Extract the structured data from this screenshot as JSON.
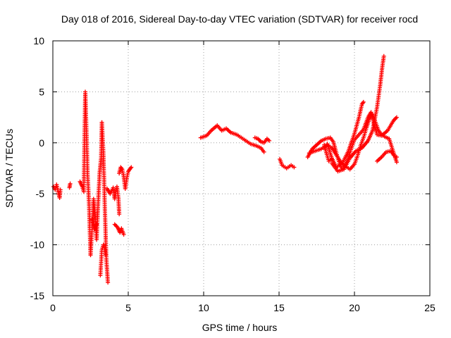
{
  "chart_data": {
    "type": "scatter",
    "title": "Day 018 of 2016, Sidereal Day-to-day VTEC variation (SDTVAR) for receiver rocd",
    "xlabel": "GPS time / hours",
    "ylabel": "SDTVAR / TECUs",
    "xlim": [
      0,
      25
    ],
    "ylim": [
      -15,
      10
    ],
    "xticks": [
      0,
      5,
      10,
      15,
      20,
      25
    ],
    "yticks": [
      -15,
      -10,
      -5,
      0,
      5,
      10
    ],
    "grid": true,
    "marker": "+",
    "color": "#ff0000",
    "series": [
      {
        "name": "SDTVAR",
        "segments": [
          [
            [
              0.05,
              -4.3
            ],
            [
              0.15,
              -4.6
            ],
            [
              0.25,
              -4.1
            ],
            [
              0.35,
              -4.8
            ],
            [
              0.45,
              -5.4
            ],
            [
              0.5,
              -4.6
            ]
          ],
          [
            [
              1.1,
              -4.4
            ],
            [
              1.15,
              -4.0
            ]
          ],
          [
            [
              1.8,
              -3.8
            ],
            [
              1.95,
              -4.3
            ],
            [
              2.05,
              -4.8
            ],
            [
              2.15,
              5.0
            ],
            [
              2.2,
              2.5
            ],
            [
              2.25,
              0.0
            ],
            [
              2.3,
              -3.0
            ],
            [
              2.4,
              -6.0
            ],
            [
              2.5,
              -11.0
            ]
          ],
          [
            [
              2.5,
              -11.0
            ],
            [
              2.6,
              -8.5
            ],
            [
              2.7,
              -5.5
            ],
            [
              2.8,
              -7.0
            ],
            [
              2.9,
              -9.5
            ],
            [
              3.0,
              -6.0
            ],
            [
              3.1,
              -3.0
            ],
            [
              3.2,
              -1.5
            ],
            [
              3.25,
              2.0
            ]
          ],
          [
            [
              3.25,
              2.0
            ],
            [
              3.35,
              -1.0
            ],
            [
              3.45,
              -6.5
            ],
            [
              3.55,
              -11.5
            ],
            [
              3.65,
              -13.7
            ]
          ],
          [
            [
              3.15,
              -13.0
            ],
            [
              3.25,
              -10.5
            ],
            [
              3.35,
              -10.0
            ],
            [
              3.45,
              -10.5
            ],
            [
              3.5,
              -11.0
            ]
          ],
          [
            [
              2.6,
              -7.5
            ],
            [
              2.75,
              -8.5
            ],
            [
              2.9,
              -8.0
            ]
          ],
          [
            [
              3.6,
              -4.5
            ],
            [
              3.8,
              -5.0
            ],
            [
              4.0,
              -4.4
            ],
            [
              4.1,
              -5.5
            ],
            [
              4.25,
              -4.3
            ],
            [
              4.35,
              -5.5
            ],
            [
              4.4,
              -7.0
            ]
          ],
          [
            [
              4.1,
              -8.0
            ],
            [
              4.3,
              -8.3
            ],
            [
              4.45,
              -8.8
            ],
            [
              4.55,
              -8.4
            ],
            [
              4.7,
              -9.0
            ]
          ],
          [
            [
              4.4,
              -3.0
            ],
            [
              4.5,
              -2.4
            ],
            [
              4.6,
              -2.6
            ],
            [
              4.7,
              -3.3
            ],
            [
              4.8,
              -4.5
            ],
            [
              4.9,
              -3.5
            ],
            [
              5.0,
              -2.8
            ],
            [
              5.1,
              -2.6
            ],
            [
              5.2,
              -2.4
            ]
          ],
          [
            [
              9.8,
              0.5
            ],
            [
              10.2,
              0.7
            ],
            [
              10.5,
              1.2
            ],
            [
              10.9,
              1.7
            ],
            [
              11.2,
              1.2
            ],
            [
              11.5,
              1.4
            ],
            [
              11.8,
              1.0
            ],
            [
              12.2,
              0.8
            ],
            [
              12.5,
              0.5
            ],
            [
              12.8,
              0.2
            ],
            [
              13.1,
              -0.1
            ],
            [
              13.5,
              -0.3
            ],
            [
              13.8,
              -0.5
            ],
            [
              14.0,
              -0.9
            ]
          ],
          [
            [
              13.4,
              0.5
            ],
            [
              13.6,
              0.4
            ],
            [
              13.8,
              0.1
            ],
            [
              14.0,
              0.0
            ],
            [
              14.2,
              0.4
            ],
            [
              14.35,
              0.2
            ]
          ],
          [
            [
              15.05,
              -1.6
            ],
            [
              15.2,
              -2.2
            ],
            [
              15.5,
              -2.5
            ],
            [
              15.8,
              -2.2
            ],
            [
              16.0,
              -2.4
            ]
          ],
          [
            [
              16.9,
              -1.4
            ],
            [
              17.2,
              -0.6
            ],
            [
              17.5,
              -0.2
            ],
            [
              17.8,
              0.2
            ],
            [
              18.1,
              0.4
            ],
            [
              18.4,
              0.5
            ],
            [
              18.6,
              0.1
            ],
            [
              18.8,
              -1.0
            ],
            [
              19.0,
              -2.0
            ],
            [
              19.2,
              -2.6
            ],
            [
              19.4,
              -2.2
            ],
            [
              19.6,
              -1.5
            ],
            [
              19.8,
              -0.5
            ],
            [
              20.0,
              0.3
            ],
            [
              20.3,
              0.8
            ],
            [
              20.6,
              1.3
            ],
            [
              20.9,
              2.5
            ],
            [
              21.1,
              3.0
            ],
            [
              21.3,
              1.8
            ],
            [
              21.5,
              0.8
            ],
            [
              21.8,
              0.7
            ],
            [
              22.2,
              1.2
            ],
            [
              22.6,
              2.2
            ],
            [
              22.8,
              2.5
            ]
          ],
          [
            [
              17.0,
              -1.0
            ],
            [
              17.4,
              -0.8
            ],
            [
              17.8,
              -0.6
            ],
            [
              18.2,
              -0.2
            ],
            [
              18.5,
              -0.5
            ],
            [
              18.8,
              -1.2
            ],
            [
              19.1,
              -1.9
            ],
            [
              19.4,
              -2.3
            ],
            [
              19.7,
              -2.6
            ],
            [
              20.0,
              -2.1
            ],
            [
              20.2,
              -1.3
            ],
            [
              20.4,
              -0.3
            ],
            [
              20.6,
              0.5
            ],
            [
              20.8,
              1.5
            ],
            [
              21.0,
              2.4
            ],
            [
              21.2,
              2.8
            ],
            [
              21.4,
              2.0
            ],
            [
              21.6,
              1.2
            ],
            [
              21.8,
              0.8
            ],
            [
              22.0,
              0.6
            ],
            [
              22.3,
              0.4
            ],
            [
              22.6,
              -1.0
            ],
            [
              22.8,
              -1.9
            ]
          ],
          [
            [
              18.2,
              -0.1
            ],
            [
              18.5,
              -1.5
            ],
            [
              18.8,
              -2.4
            ],
            [
              19.2,
              -2.0
            ],
            [
              19.6,
              -0.8
            ],
            [
              20.0,
              0.9
            ],
            [
              20.3,
              2.5
            ],
            [
              20.5,
              3.8
            ],
            [
              20.6,
              4.0
            ]
          ],
          [
            [
              18.5,
              -2.0
            ],
            [
              18.9,
              -2.8
            ],
            [
              19.3,
              -2.6
            ],
            [
              19.7,
              -1.5
            ],
            [
              20.1,
              -0.8
            ],
            [
              20.5,
              -0.5
            ],
            [
              20.9,
              0.2
            ],
            [
              21.2,
              1.2
            ],
            [
              21.5,
              3.5
            ],
            [
              21.7,
              5.6
            ],
            [
              21.85,
              7.5
            ],
            [
              21.95,
              8.5
            ]
          ],
          [
            [
              21.5,
              -1.8
            ],
            [
              21.8,
              -1.4
            ],
            [
              22.1,
              -0.9
            ],
            [
              22.4,
              -0.8
            ],
            [
              22.6,
              -1.2
            ],
            [
              22.8,
              -1.4
            ]
          ],
          [
            [
              18.0,
              -0.2
            ],
            [
              18.1,
              -0.8
            ],
            [
              18.3,
              -1.8
            ],
            [
              18.5,
              -1.6
            ]
          ]
        ]
      }
    ]
  }
}
